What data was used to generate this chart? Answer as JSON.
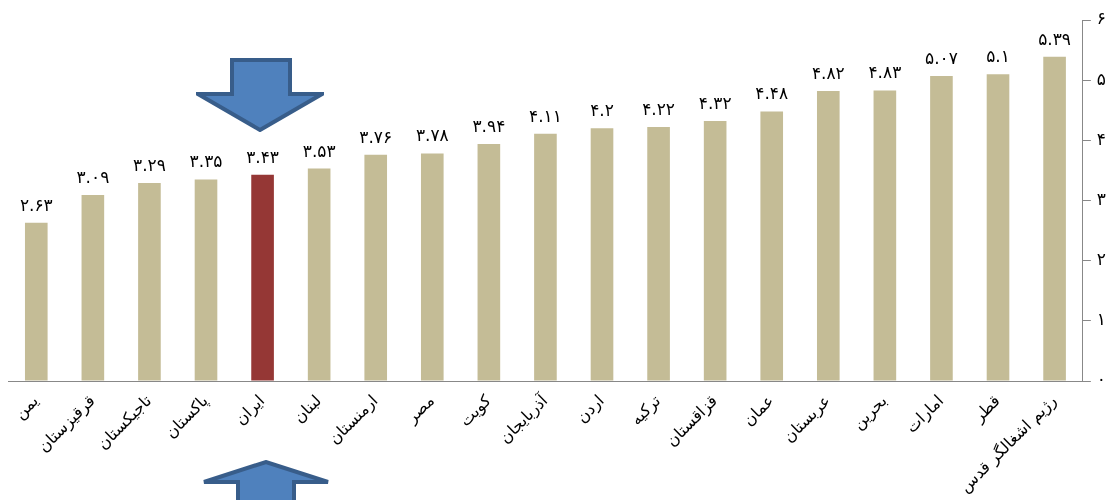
{
  "chart_data": {
    "type": "bar",
    "categories": [
      "یمن",
      "قرقیزستان",
      "تاجیکستان",
      "پاکستان",
      "ایران",
      "لبنان",
      "ارمنستان",
      "مصر",
      "کویت",
      "آذربایجان",
      "اردن",
      "ترکیه",
      "قزاقستان",
      "عمان",
      "عربستان",
      "بحرین",
      "امارات",
      "قطر",
      "رژیم اشغالگر قدس"
    ],
    "values": [
      2.63,
      3.09,
      3.29,
      3.35,
      3.43,
      3.53,
      3.76,
      3.78,
      3.94,
      4.11,
      4.2,
      4.22,
      4.32,
      4.48,
      4.82,
      4.83,
      5.07,
      5.1,
      5.39
    ],
    "value_labels": [
      "۲.۶۳",
      "۳.۰۹",
      "۳.۲۹",
      "۳.۳۵",
      "۳.۴۳",
      "۳.۵۳",
      "۳.۷۶",
      "۳.۷۸",
      "۳.۹۴",
      "۴.۱۱",
      "۴.۲",
      "۴.۲۲",
      "۴.۳۲",
      "۴.۴۸",
      "۴.۸۲",
      "۴.۸۳",
      "۵.۰۷",
      "۵.۱",
      "۵.۳۹"
    ],
    "colors": [
      "#c4bc96",
      "#c4bc96",
      "#c4bc96",
      "#c4bc96",
      "#953735",
      "#c4bc96",
      "#c4bc96",
      "#c4bc96",
      "#c4bc96",
      "#c4bc96",
      "#c4bc96",
      "#c4bc96",
      "#c4bc96",
      "#c4bc96",
      "#c4bc96",
      "#c4bc96",
      "#c4bc96",
      "#c4bc96",
      "#c4bc96"
    ],
    "ylim": [
      0,
      6
    ],
    "yticks": [
      {
        "value": 0,
        "label": "۰"
      },
      {
        "value": 1,
        "label": "۱"
      },
      {
        "value": 2,
        "label": "۲"
      },
      {
        "value": 3,
        "label": "۳"
      },
      {
        "value": 4,
        "label": "۴"
      },
      {
        "value": 5,
        "label": "۵"
      },
      {
        "value": 6,
        "label": "۶"
      }
    ],
    "grid": false,
    "legend": false
  }
}
